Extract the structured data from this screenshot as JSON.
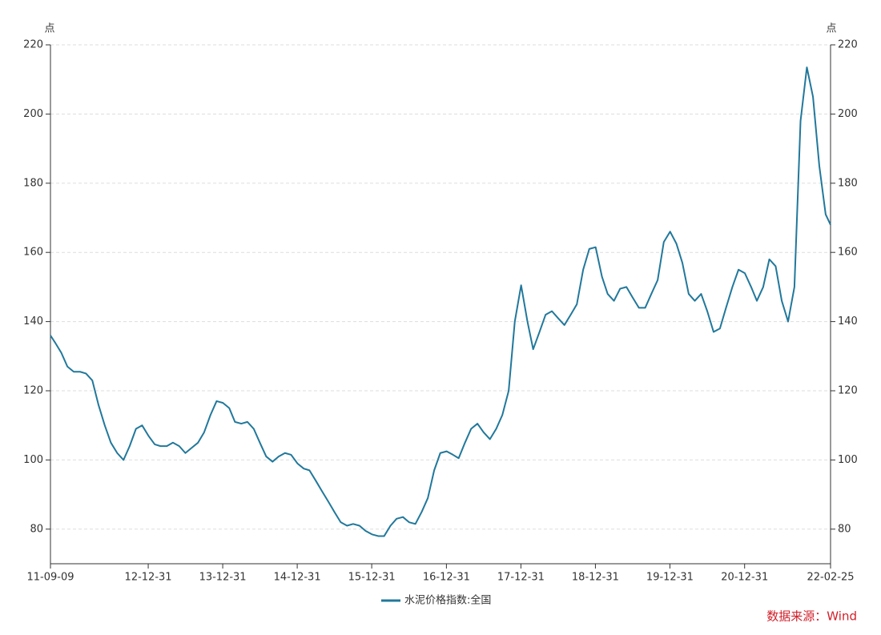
{
  "chart_data": {
    "type": "line",
    "y_unit": "点",
    "y2_unit": "点",
    "source": "数据来源：Wind",
    "xlim": [
      "11-09-09",
      "22-02-25"
    ],
    "xticks": [
      "11-09-09",
      "12-12-31",
      "13-12-31",
      "14-12-31",
      "15-12-31",
      "16-12-31",
      "17-12-31",
      "18-12-31",
      "19-12-31",
      "20-12-31",
      "22-02-25"
    ],
    "ylim": [
      70,
      220
    ],
    "yticks": [
      80,
      100,
      120,
      140,
      160,
      180,
      200,
      220
    ],
    "y2lim": [
      70,
      220
    ],
    "y2ticks": [
      80,
      100,
      120,
      140,
      160,
      180,
      200,
      220
    ],
    "grid": true,
    "x": [
      "11-09-09",
      "11-10-01",
      "11-11-01",
      "11-12-01",
      "12-01-01",
      "12-02-01",
      "12-03-01",
      "12-04-01",
      "12-05-01",
      "12-06-01",
      "12-07-01",
      "12-08-01",
      "12-09-01",
      "12-10-01",
      "12-11-01",
      "12-12-01",
      "13-01-01",
      "13-02-01",
      "13-03-01",
      "13-04-01",
      "13-05-01",
      "13-06-01",
      "13-07-01",
      "13-08-01",
      "13-09-01",
      "13-10-01",
      "13-11-01",
      "13-12-01",
      "14-01-01",
      "14-02-01",
      "14-03-01",
      "14-04-01",
      "14-05-01",
      "14-06-01",
      "14-07-01",
      "14-08-01",
      "14-09-01",
      "14-10-01",
      "14-11-01",
      "14-12-01",
      "15-01-01",
      "15-02-01",
      "15-03-01",
      "15-04-01",
      "15-05-01",
      "15-06-01",
      "15-07-01",
      "15-08-01",
      "15-09-01",
      "15-10-01",
      "15-11-01",
      "15-12-01",
      "16-01-01",
      "16-02-01",
      "16-03-01",
      "16-04-01",
      "16-05-01",
      "16-06-01",
      "16-07-01",
      "16-08-01",
      "16-09-01",
      "16-10-01",
      "16-11-01",
      "16-12-01",
      "17-01-01",
      "17-02-01",
      "17-03-01",
      "17-04-01",
      "17-05-01",
      "17-06-01",
      "17-07-01",
      "17-08-01",
      "17-09-01",
      "17-10-01",
      "17-11-01",
      "17-12-01",
      "18-01-01",
      "18-02-01",
      "18-03-01",
      "18-04-01",
      "18-05-01",
      "18-06-01",
      "18-07-01",
      "18-08-01",
      "18-09-01",
      "18-10-01",
      "18-11-01",
      "18-12-01",
      "19-01-01",
      "19-02-01",
      "19-03-01",
      "19-04-01",
      "19-05-01",
      "19-06-01",
      "19-07-01",
      "19-08-01",
      "19-09-01",
      "19-10-01",
      "19-11-01",
      "19-12-01",
      "20-01-01",
      "20-02-01",
      "20-03-01",
      "20-04-01",
      "20-05-01",
      "20-06-01",
      "20-07-01",
      "20-08-01",
      "20-09-01",
      "20-10-01",
      "20-11-01",
      "20-12-01",
      "21-01-01",
      "21-02-01",
      "21-03-01",
      "21-04-01",
      "21-05-01",
      "21-06-01",
      "21-07-01",
      "21-08-01",
      "21-09-01",
      "21-10-01",
      "21-11-01",
      "21-12-01",
      "22-01-01",
      "22-02-01",
      "22-02-25"
    ],
    "series": [
      {
        "name": "水泥价格指数:全国",
        "color": "#21789b",
        "values": [
          136,
          134,
          131,
          127,
          125.5,
          125.5,
          125,
          123,
          116,
          110,
          105,
          102,
          100,
          104,
          109,
          110,
          107,
          104.5,
          104,
          104,
          105,
          104,
          102,
          103.5,
          105,
          108,
          113,
          117,
          116.5,
          115,
          111,
          110.5,
          111,
          109,
          105,
          101,
          99.5,
          101,
          102,
          101.5,
          99,
          97.5,
          97,
          94,
          91,
          88,
          85,
          82,
          81,
          81.5,
          81,
          79.5,
          78.5,
          78,
          78,
          81,
          83,
          83.5,
          82,
          81.5,
          85,
          89,
          97,
          102,
          102.5,
          101.5,
          100.5,
          105,
          109,
          110.5,
          108,
          106,
          109,
          113,
          120,
          140,
          150.5,
          140,
          132,
          137,
          142,
          143,
          141,
          139,
          142,
          145,
          155,
          161,
          161.5,
          153,
          148,
          146,
          149.5,
          150,
          147,
          144,
          144,
          148,
          152,
          163,
          166,
          162.5,
          157,
          148,
          146,
          148,
          143,
          137,
          138,
          144,
          150,
          155,
          154,
          150,
          146,
          150,
          158,
          156,
          146,
          140,
          150,
          198,
          213.5,
          205,
          185,
          171,
          168
        ]
      }
    ]
  }
}
